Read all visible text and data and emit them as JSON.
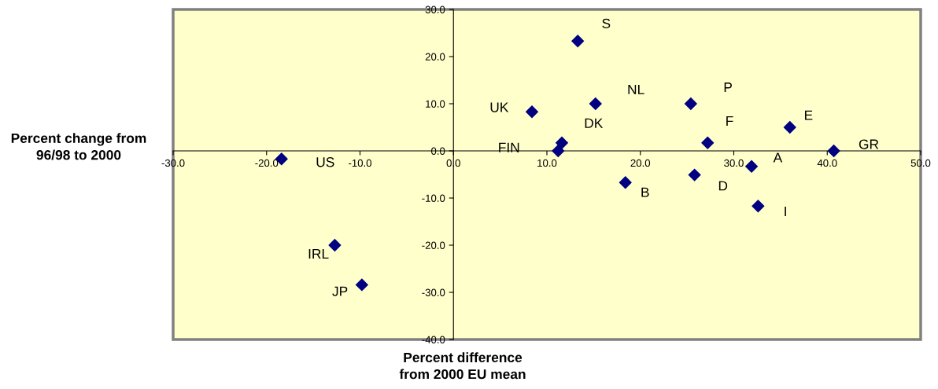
{
  "chart_data": {
    "type": "scatter",
    "xlabel": "Percent difference\nfrom 2000 EU mean",
    "ylabel": "Percent change from\n96/98 to 2000",
    "x": [
      13.3,
      8.4,
      15.2,
      25.4,
      36.0,
      40.7,
      27.2,
      11.6,
      11.2,
      31.9,
      25.8,
      18.4,
      32.6,
      -18.4,
      -12.7,
      -9.8
    ],
    "series": [
      {
        "color": "#000080",
        "values": [
          23.3,
          8.3,
          10.0,
          10.0,
          5.0,
          0.0,
          1.7,
          1.7,
          0.0,
          -3.3,
          -5.1,
          -6.7,
          -11.7,
          -1.7,
          -20.0,
          -28.4
        ]
      }
    ],
    "marker": "diamond",
    "grid": false,
    "annotations": [
      {
        "text": "S",
        "x": 13.3,
        "y": 23.3
      },
      {
        "text": "UK",
        "x": 8.4,
        "y": 8.3
      },
      {
        "text": "NL",
        "x": 15.2,
        "y": 10.0
      },
      {
        "text": "P",
        "x": 25.4,
        "y": 10.0
      },
      {
        "text": "E",
        "x": 36.0,
        "y": 5.0
      },
      {
        "text": "GR",
        "x": 40.7,
        "y": 0.0
      },
      {
        "text": "F",
        "x": 27.2,
        "y": 1.7
      },
      {
        "text": "DK",
        "x": 11.6,
        "y": 1.7
      },
      {
        "text": "FIN",
        "x": 11.2,
        "y": 0.0
      },
      {
        "text": "A",
        "x": 31.9,
        "y": -3.3
      },
      {
        "text": "D",
        "x": 25.8,
        "y": -5.1
      },
      {
        "text": "B",
        "x": 18.4,
        "y": -6.7
      },
      {
        "text": "I",
        "x": 32.6,
        "y": -11.7
      },
      {
        "text": "US",
        "x": -18.4,
        "y": -1.7
      },
      {
        "text": "IRL",
        "x": -12.7,
        "y": -20.0
      },
      {
        "text": "JP",
        "x": -9.8,
        "y": -28.4
      }
    ],
    "xlim": [
      -30,
      50
    ],
    "ylim": [
      -40,
      30
    ],
    "xticks": [
      {
        "value": -30,
        "label": "-30.0"
      },
      {
        "value": -20,
        "label": "-20.0"
      },
      {
        "value": -10,
        "label": "-10.0"
      },
      {
        "value": 0,
        "label": "0.0"
      },
      {
        "value": 10,
        "label": "10.0"
      },
      {
        "value": 20,
        "label": "20.0"
      },
      {
        "value": 30,
        "label": "30.0"
      },
      {
        "value": 40,
        "label": "40.0"
      },
      {
        "value": 50,
        "label": "50.0"
      }
    ],
    "yticks": [
      {
        "value": -40,
        "label": "-40.0"
      },
      {
        "value": -30,
        "label": "-30.0"
      },
      {
        "value": -20,
        "label": "-20.0"
      },
      {
        "value": -10,
        "label": "-10.0"
      },
      {
        "value": 0,
        "label": "0.0"
      },
      {
        "value": 10,
        "label": "10.0"
      },
      {
        "value": 20,
        "label": "20.0"
      },
      {
        "value": 30,
        "label": "30.0"
      }
    ]
  }
}
